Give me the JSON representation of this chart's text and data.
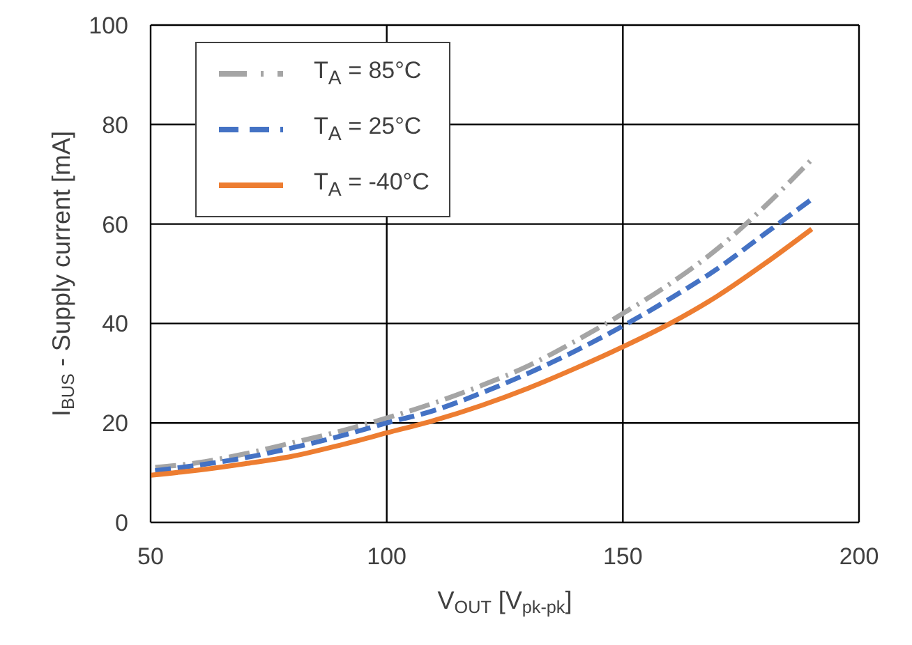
{
  "chart_data": {
    "type": "line",
    "xlabel": "V$_{OUT}$ [V$_{pk-pk}$]",
    "ylabel": "I$_{BUS}$ - Supply current [mA]",
    "x": [
      50,
      60,
      70,
      80,
      90,
      100,
      110,
      120,
      130,
      140,
      150,
      160,
      170,
      180,
      190
    ],
    "series": [
      {
        "name": "T$_{A}$ = 85°C",
        "color": "#a5a5a5",
        "line_style": "dashdot",
        "values": [
          11,
          12,
          13.8,
          16,
          18.3,
          21,
          24,
          27.5,
          31.5,
          36.5,
          42,
          48,
          55,
          63.5,
          73
        ]
      },
      {
        "name": "T$_{A}$ = 25°C",
        "color": "#4472c4",
        "line_style": "dashed",
        "values": [
          10.3,
          11.5,
          13,
          15,
          17.3,
          20,
          22.5,
          26,
          30,
          34.5,
          39.5,
          45,
          51,
          58,
          65
        ]
      },
      {
        "name": "T$_{A}$ = -40°C",
        "color": "#ed7d31",
        "line_style": "solid",
        "values": [
          9.5,
          10.5,
          11.8,
          13.3,
          15.5,
          18,
          20.5,
          23.5,
          27,
          31,
          35.3,
          40,
          45.5,
          52,
          59
        ]
      }
    ],
    "xlim": [
      50,
      200
    ],
    "xticks": [
      50,
      100,
      150,
      200
    ],
    "ylim": [
      0,
      100
    ],
    "yticks": [
      0,
      20,
      40,
      60,
      80,
      100
    ],
    "grid": true,
    "legend": "top left",
    "marker": "none"
  }
}
